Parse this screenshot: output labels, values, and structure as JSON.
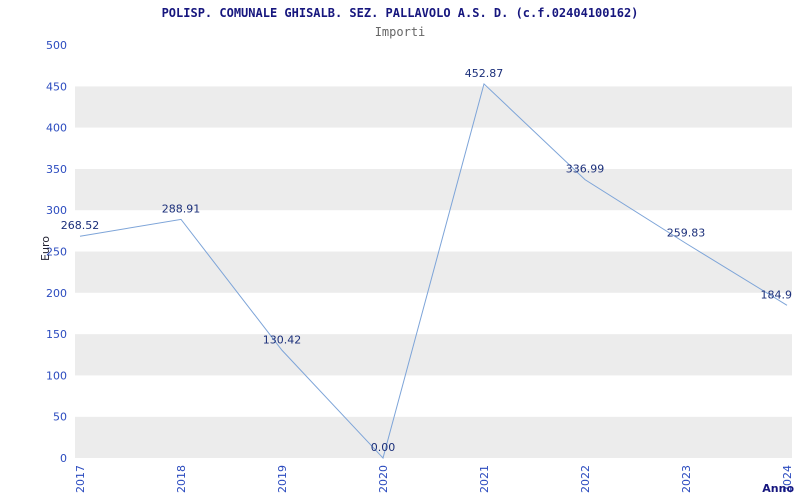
{
  "header": {
    "title": "POLISP. COMUNALE GHISALB. SEZ. PALLAVOLO A.S. D. (c.f.02404100162)",
    "subtitle": "Importi"
  },
  "chart_data": {
    "type": "line",
    "x": [
      "2017",
      "2018",
      "2019",
      "2020",
      "2021",
      "2022",
      "2023",
      "2024"
    ],
    "series": [
      {
        "name": "Importi",
        "values": [
          268.52,
          288.91,
          130.42,
          0.0,
          452.87,
          336.99,
          259.83,
          184.9
        ]
      }
    ],
    "point_labels": [
      "268.52",
      "288.91",
      "130.42",
      "0.00",
      "452.87",
      "336.99",
      "259.83",
      "184.9"
    ],
    "title": "POLISP. COMUNALE GHISALB. SEZ. PALLAVOLO A.S. D. (c.f.02404100162)",
    "subtitle": "Importi",
    "xlabel": "Anno",
    "ylabel": "Euro",
    "ylim": [
      0,
      500
    ],
    "ytick_step": 50,
    "grid": "horizontal-bands",
    "legend": "none",
    "colors": {
      "line": "#7da4d8",
      "band_gray": "#ececec",
      "band_white": "#ffffff",
      "tick_text": "#2b4bbf",
      "point_label_text": "#1b2f7a"
    }
  }
}
